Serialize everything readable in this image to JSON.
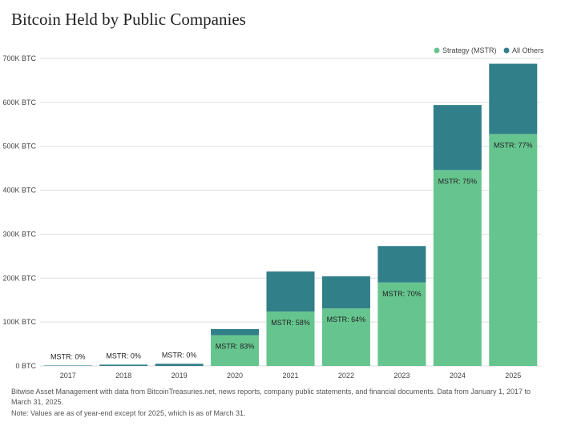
{
  "chart_data": {
    "type": "bar",
    "stacked": true,
    "title": "Bitcoin Held by Public Companies",
    "categories": [
      "2017",
      "2018",
      "2019",
      "2020",
      "2021",
      "2022",
      "2023",
      "2024",
      "2025"
    ],
    "series": [
      {
        "name": "Strategy (MSTR)",
        "color": "#66c48f",
        "values": [
          0,
          0,
          0,
          70000,
          124000,
          131000,
          190000,
          446000,
          528000
        ]
      },
      {
        "name": "All Others",
        "color": "#317f89",
        "values": [
          1000,
          3000,
          5000,
          14000,
          91000,
          73000,
          83000,
          148000,
          160000
        ]
      }
    ],
    "data_labels": [
      "MSTR: 0%",
      "MSTR: 0%",
      "MSTR: 0%",
      "MSTR: 83%",
      "MSTR: 58%",
      "MSTR: 64%",
      "MSTR: 70%",
      "MSTR: 75%",
      "MSTR: 77%"
    ],
    "ylim": [
      0,
      700000
    ],
    "yticks": [
      0,
      100000,
      200000,
      300000,
      400000,
      500000,
      600000,
      700000
    ],
    "ytick_labels": [
      "0 BTC",
      "100K BTC",
      "200K BTC",
      "300K BTC",
      "400K BTC",
      "500K BTC",
      "600K BTC",
      "700K BTC"
    ],
    "grid": true,
    "legend": "top-right"
  },
  "source": "Bitwise Asset Management with data from BitcoinTreasuries.net, news reports, company public statements, and financial documents. Data from January 1, 2017 to March 31, 2025.",
  "note": "Note: Values are as of year-end except for 2025, which is as of March 31."
}
